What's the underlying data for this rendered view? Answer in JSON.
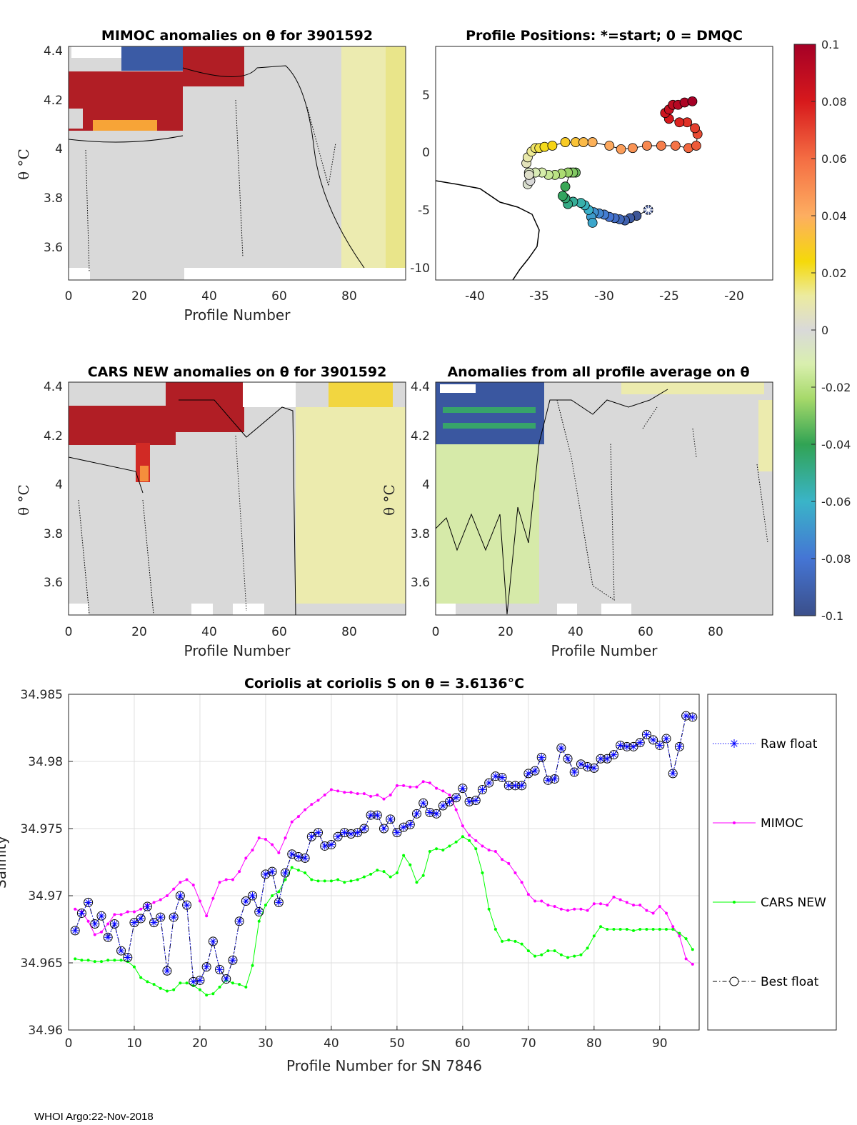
{
  "footer": "WHOI Argo:22-Nov-2018",
  "colorbar": {
    "ticks": [
      "0.1",
      "0.08",
      "0.06",
      "0.04",
      "0.02",
      "0",
      "-0.02",
      "-0.04",
      "-0.06",
      "-0.08",
      "-0.1"
    ],
    "range": [
      -0.1,
      0.1
    ]
  },
  "panels": {
    "mimoc": {
      "title": "MIMOC anomalies on θ  for 3901592",
      "xlabel": "Profile Number",
      "ylabel": "θ °C",
      "xticks": [
        "0",
        "20",
        "40",
        "60",
        "80"
      ],
      "yticks": [
        "4.4",
        "4.2",
        "4",
        "3.8",
        "3.6"
      ]
    },
    "positions": {
      "title": "Profile Positions: *=start; 0 = DMQC",
      "xticks": [
        "-40",
        "-35",
        "-30",
        "-25",
        "-20"
      ],
      "yticks": [
        "5",
        "0",
        "-5",
        "-10"
      ]
    },
    "cars": {
      "title": "CARS NEW anomalies on θ for 3901592",
      "xlabel": "Profile Number",
      "ylabel": "θ °C",
      "xticks": [
        "0",
        "20",
        "40",
        "60",
        "80"
      ],
      "yticks": [
        "4.4",
        "4.2",
        "4",
        "3.8",
        "3.6"
      ]
    },
    "allavg": {
      "title": "Anomalies from all profile average on θ",
      "xlabel": "Profile Number",
      "ylabel": "θ °C",
      "xticks": [
        "0",
        "20",
        "40",
        "60",
        "80"
      ],
      "yticks": [
        "4.4",
        "4.2",
        "4",
        "3.8",
        "3.6"
      ]
    }
  },
  "chart_data": [
    {
      "type": "heatmap",
      "title": "MIMOC anomalies on θ  for 3901592",
      "xlabel": "Profile Number",
      "ylabel": "θ °C",
      "xlim": [
        0,
        96
      ],
      "ylim": [
        3.46,
        4.42
      ],
      "note": "Warm (≈+0.1) anomalies for profiles 1–33 between θ 4.1 and 4.3; near zero elsewhere; slight positive anomalies for profiles >85"
    },
    {
      "type": "scatter",
      "title": "Profile Positions: *=start; 0 = DMQC",
      "xlim": [
        -43,
        -17
      ],
      "ylim": [
        -11,
        9
      ],
      "lon": [
        -26.6,
        -27.5,
        -28.0,
        -28.4,
        -28.8,
        -29.2,
        -29.6,
        -30.0,
        -30.4,
        -30.8,
        -31.0,
        -30.9,
        -31.2,
        -31.5,
        -31.8,
        -32.4,
        -32.8,
        -33.0,
        -33.2,
        -33.0,
        -32.6,
        -32.2,
        -32.4,
        -32.8,
        -33.3,
        -33.8,
        -34.3,
        -34.8,
        -35.3,
        -35.8,
        -35.9,
        -35.7,
        -35.8,
        -36.0,
        -35.9,
        -35.6,
        -35.3,
        -35.0,
        -34.6,
        -34.0,
        -33.0,
        -32.2,
        -31.6,
        -30.9,
        -29.6,
        -28.7,
        -27.8,
        -26.7,
        -25.6,
        -24.5,
        -23.5,
        -22.9,
        -22.8,
        -23.0,
        -23.6,
        -24.2,
        -25.0,
        -25.3,
        -25.0,
        -24.7,
        -24.3,
        -23.8,
        -23.2
      ],
      "lat": [
        -5.0,
        -5.5,
        -5.7,
        -5.9,
        -5.8,
        -5.7,
        -5.6,
        -5.4,
        -5.3,
        -5.2,
        -5.6,
        -6.1,
        -5.0,
        -4.6,
        -4.4,
        -4.3,
        -4.5,
        -4.0,
        -3.8,
        -3.0,
        -1.8,
        -1.8,
        -1.8,
        -1.8,
        -1.9,
        -2.0,
        -2.0,
        -1.8,
        -1.8,
        -1.8,
        -2.8,
        -2.5,
        -2.0,
        -1.0,
        -0.5,
        0.0,
        0.3,
        0.3,
        0.4,
        0.5,
        0.8,
        0.8,
        0.8,
        0.8,
        0.5,
        0.2,
        0.3,
        0.5,
        0.5,
        0.5,
        0.3,
        0.5,
        1.5,
        2.0,
        2.5,
        2.5,
        2.8,
        3.3,
        3.6,
        4.0,
        4.0,
        4.2,
        4.3
      ],
      "color_index_from_start": true
    },
    {
      "type": "heatmap",
      "title": "CARS NEW anomalies on θ for 3901592",
      "xlabel": "Profile Number",
      "ylabel": "θ °C",
      "xlim": [
        0,
        96
      ],
      "ylim": [
        3.46,
        4.42
      ],
      "note": "Warm (≈+0.1) anomalies for profiles 1–33 between θ 4.1 and 4.3; near zero for 33–65; positive (≈+0.02) for profiles >65"
    },
    {
      "type": "heatmap",
      "title": "Anomalies from all profile average on θ",
      "xlabel": "Profile Number",
      "ylabel": "θ °C",
      "xlim": [
        0,
        96
      ],
      "ylim": [
        3.46,
        4.42
      ],
      "note": "Negative (≈-0.1) anomalies for profiles 1–31 above θ 4.15; slightly negative below; near zero for profiles >31"
    },
    {
      "type": "line",
      "title": "Coriolis at coriolis S on θ = 3.6136°C",
      "xlabel": "Profile Number for SN 7846",
      "ylabel": "Salinity",
      "xlim": [
        0,
        96
      ],
      "ylim": [
        34.96,
        34.985
      ],
      "xticks": [
        "0",
        "10",
        "20",
        "30",
        "40",
        "50",
        "60",
        "70",
        "80",
        "90"
      ],
      "yticks": [
        "34.985",
        "34.98",
        "34.975",
        "34.97",
        "34.965",
        "34.96"
      ],
      "legend": [
        "Raw float",
        "MIMOC",
        "CARS NEW",
        "Best float"
      ],
      "x": [
        1,
        2,
        3,
        4,
        5,
        6,
        7,
        8,
        9,
        10,
        11,
        12,
        13,
        14,
        15,
        16,
        17,
        18,
        19,
        20,
        21,
        22,
        23,
        24,
        25,
        26,
        27,
        28,
        29,
        30,
        31,
        32,
        33,
        34,
        35,
        36,
        37,
        38,
        39,
        40,
        41,
        42,
        43,
        44,
        45,
        46,
        47,
        48,
        49,
        50,
        51,
        52,
        53,
        54,
        55,
        56,
        57,
        58,
        59,
        60,
        61,
        62,
        63,
        64,
        65,
        66,
        67,
        68,
        69,
        70,
        71,
        72,
        73,
        74,
        75,
        76,
        77,
        78,
        79,
        80,
        81,
        82,
        83,
        84,
        85,
        86,
        87,
        88,
        89,
        90,
        91,
        92,
        93,
        94,
        95
      ],
      "series": [
        {
          "name": "Raw float",
          "values": [
            34.9674,
            34.9687,
            34.9695,
            34.9679,
            34.9685,
            34.9669,
            34.9679,
            34.9659,
            34.9654,
            34.968,
            34.9683,
            34.9692,
            34.968,
            34.9684,
            34.9644,
            34.9684,
            34.97,
            34.9693,
            34.9636,
            34.9637,
            34.9647,
            34.9666,
            34.9645,
            34.9638,
            34.9652,
            34.9681,
            34.9696,
            34.97,
            34.9688,
            34.9716,
            34.9718,
            34.9695,
            34.9717,
            34.9731,
            34.9729,
            34.9728,
            34.9744,
            34.9747,
            34.9737,
            34.9738,
            34.9744,
            34.9747,
            34.9746,
            34.9747,
            34.975,
            34.976,
            34.976,
            34.975,
            34.9757,
            34.9747,
            34.9751,
            34.9753,
            34.9761,
            34.9769,
            34.9762,
            34.9761,
            34.9767,
            34.977,
            34.9773,
            34.978,
            34.977,
            34.9771,
            34.9779,
            34.9784,
            34.9789,
            34.9788,
            34.9782,
            34.9782,
            34.9782,
            34.9791,
            34.9793,
            34.9803,
            34.9786,
            34.9787,
            34.981,
            34.9802,
            34.9792,
            34.9798,
            34.9796,
            34.9795,
            34.9802,
            34.9802,
            34.9805,
            34.9812,
            34.9811,
            34.9811,
            34.9814,
            34.982,
            34.9816,
            34.9812,
            34.9817,
            34.9791,
            34.9811,
            34.9834,
            34.9833
          ]
        },
        {
          "name": "MIMOC",
          "values": [
            34.969,
            34.9688,
            34.9681,
            34.9671,
            34.9673,
            34.9679,
            34.9686,
            34.9686,
            34.9688,
            34.9688,
            34.969,
            34.9693,
            34.9695,
            34.9697,
            34.97,
            34.9705,
            34.971,
            34.9712,
            34.9708,
            34.9696,
            34.9685,
            34.9698,
            34.971,
            34.9712,
            34.9712,
            34.9718,
            34.9728,
            34.9734,
            34.9743,
            34.9742,
            34.9738,
            34.9732,
            34.9743,
            34.9755,
            34.9759,
            34.9764,
            34.9768,
            34.9771,
            34.9775,
            34.9779,
            34.9778,
            34.9777,
            34.9777,
            34.9776,
            34.9776,
            34.9774,
            34.9775,
            34.9772,
            34.9775,
            34.9782,
            34.9782,
            34.9781,
            34.9781,
            34.9785,
            34.9784,
            34.978,
            34.9778,
            34.9775,
            34.9764,
            34.9752,
            34.9745,
            34.9741,
            34.9737,
            34.9734,
            34.9733,
            34.9727,
            34.9724,
            34.9717,
            34.971,
            34.9701,
            34.9696,
            34.9696,
            34.9693,
            34.9692,
            34.969,
            34.9689,
            34.969,
            34.969,
            34.9689,
            34.9694,
            34.9694,
            34.9693,
            34.9699,
            34.9697,
            34.9695,
            34.9693,
            34.9693,
            34.9689,
            34.9687,
            34.9692,
            34.9687,
            34.9677,
            34.967,
            34.9653,
            34.9649
          ]
        },
        {
          "name": "CARS NEW",
          "values": [
            34.9653,
            34.9652,
            34.9652,
            34.9651,
            34.9651,
            34.9652,
            34.9652,
            34.9652,
            34.9651,
            34.9647,
            34.9639,
            34.9636,
            34.9634,
            34.9631,
            34.9629,
            34.963,
            34.9635,
            34.9635,
            34.9633,
            34.963,
            34.9626,
            34.9627,
            34.9632,
            34.9637,
            34.9635,
            34.9634,
            34.9632,
            34.9648,
            34.9681,
            34.9693,
            34.97,
            34.9703,
            34.9712,
            34.9721,
            34.9719,
            34.9717,
            34.9712,
            34.9711,
            34.9711,
            34.9711,
            34.9712,
            34.971,
            34.9711,
            34.9712,
            34.9714,
            34.9716,
            34.9719,
            34.9718,
            34.9714,
            34.9717,
            34.973,
            34.9723,
            34.971,
            34.9715,
            34.9733,
            34.9735,
            34.9734,
            34.9737,
            34.974,
            34.9744,
            34.9741,
            34.9735,
            34.9717,
            34.969,
            34.9675,
            34.9666,
            34.9667,
            34.9666,
            34.9664,
            34.9659,
            34.9655,
            34.9656,
            34.9659,
            34.9659,
            34.9656,
            34.9654,
            34.9655,
            34.9656,
            34.9661,
            34.967,
            34.9677,
            34.9675,
            34.9675,
            34.9675,
            34.9675,
            34.9674,
            34.9675,
            34.9675,
            34.9675,
            34.9675,
            34.9675,
            34.9675,
            34.9672,
            34.9668,
            34.966
          ]
        },
        {
          "name": "Best float",
          "values": [
            34.9674,
            34.9687,
            34.9695,
            34.9679,
            34.9685,
            34.9669,
            34.9679,
            34.9659,
            34.9654,
            34.968,
            34.9683,
            34.9692,
            34.968,
            34.9684,
            34.9644,
            34.9684,
            34.97,
            34.9693,
            34.9636,
            34.9637,
            34.9647,
            34.9666,
            34.9645,
            34.9638,
            34.9652,
            34.9681,
            34.9696,
            34.97,
            34.9688,
            34.9716,
            34.9718,
            34.9695,
            34.9717,
            34.9731,
            34.9729,
            34.9728,
            34.9744,
            34.9747,
            34.9737,
            34.9738,
            34.9744,
            34.9747,
            34.9746,
            34.9747,
            34.975,
            34.976,
            34.976,
            34.975,
            34.9757,
            34.9747,
            34.9751,
            34.9753,
            34.9761,
            34.9769,
            34.9762,
            34.9761,
            34.9767,
            34.977,
            34.9773,
            34.978,
            34.977,
            34.9771,
            34.9779,
            34.9784,
            34.9789,
            34.9788,
            34.9782,
            34.9782,
            34.9782,
            34.9791,
            34.9793,
            34.9803,
            34.9786,
            34.9787,
            34.981,
            34.9802,
            34.9792,
            34.9798,
            34.9796,
            34.9795,
            34.9802,
            34.9802,
            34.9805,
            34.9812,
            34.9811,
            34.9811,
            34.9814,
            34.982,
            34.9816,
            34.9812,
            34.9817,
            34.9791,
            34.9811,
            34.9834,
            34.9833
          ]
        }
      ]
    }
  ]
}
